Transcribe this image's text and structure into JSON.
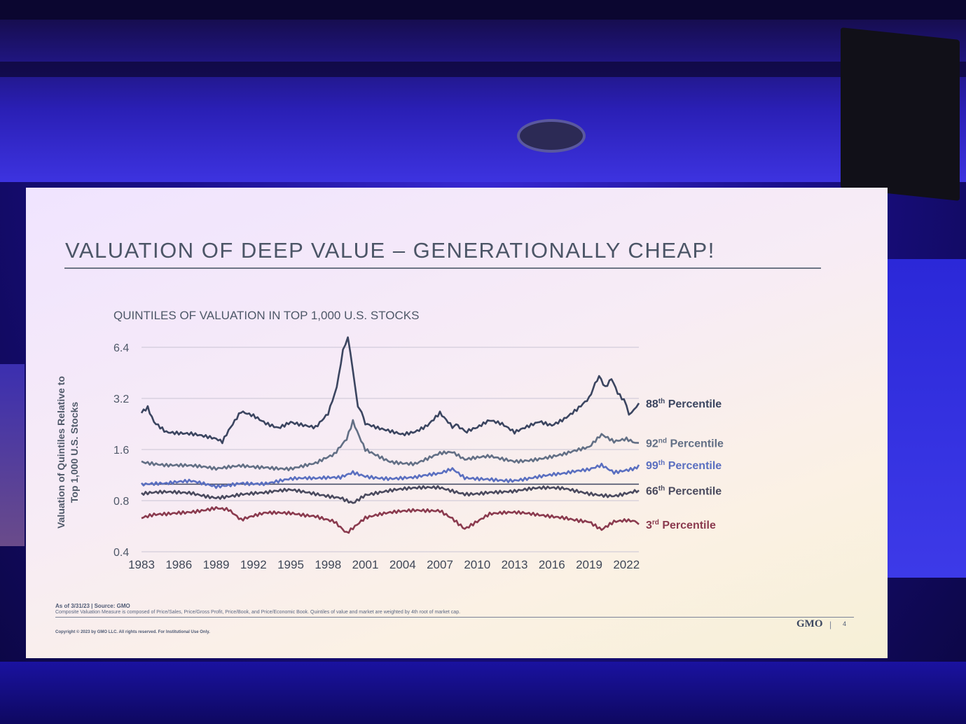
{
  "slide": {
    "title": "VALUATION OF DEEP VALUE – GENERATIONALLY CHEAP!",
    "footnote_source": "As of 3/31/23 | Source: GMO",
    "footnote_method": "Composite Valuation Measure is composed of Price/Sales, Price/Gross Profit, Price/Book, and Price/Economic Book. Quintiles of value and market are weighted by 4th root of market cap.",
    "copyright": "Copyright © 2023 by GMO LLC. All rights reserved. For Institutional Use Only.",
    "logo": "GMO",
    "page_number": "4"
  },
  "chart_data": {
    "type": "line",
    "title": "QUINTILES OF VALUATION IN TOP 1,000 U.S. STOCKS",
    "ylabel": "Valuation of Quintiles Relative to Top 1,000 U.S. Stocks",
    "xlabel": "",
    "y_scale": "log2",
    "ylim": [
      0.4,
      6.4
    ],
    "yticks": [
      "0.4",
      "0.8",
      "1.6",
      "3.2",
      "6.4"
    ],
    "xlim": [
      1983,
      2023
    ],
    "xticks": [
      "1983",
      "1986",
      "1989",
      "1992",
      "1995",
      "1998",
      "2001",
      "2004",
      "2007",
      "2010",
      "2013",
      "2016",
      "2019",
      "2022"
    ],
    "reference_line": 1.0,
    "grid": "horizontal",
    "series": [
      {
        "name": "88th Percentile",
        "name_num": "88",
        "name_sup": "th",
        "name_rest": " Percentile",
        "color": "#3b4560",
        "x": [
          1983,
          1983.5,
          1984,
          1985,
          1986,
          1987,
          1988,
          1989,
          1989.5,
          1990,
          1991,
          1992,
          1993,
          1994,
          1995,
          1996,
          1997,
          1998,
          1998.7,
          1999.2,
          1999.6,
          2000,
          2000.4,
          2001,
          2002,
          2003,
          2004,
          2005,
          2006,
          2007,
          2008,
          2008.6,
          2009,
          2010,
          2011,
          2012,
          2013,
          2014,
          2015,
          2016,
          2017,
          2018,
          2019,
          2019.8,
          2020.3,
          2020.8,
          2021.3,
          2021.8,
          2022.2,
          2022.6,
          2023
        ],
        "values": [
          2.7,
          2.9,
          2.4,
          2.1,
          2.05,
          2.0,
          1.9,
          1.8,
          1.72,
          2.0,
          2.6,
          2.5,
          2.3,
          2.2,
          2.4,
          2.3,
          2.2,
          2.6,
          3.8,
          6.2,
          7.3,
          4.5,
          3.0,
          2.2,
          2.1,
          2.05,
          2.0,
          2.1,
          2.3,
          2.7,
          2.2,
          2.1,
          2.0,
          2.1,
          2.3,
          2.2,
          2.0,
          2.2,
          2.4,
          2.3,
          2.5,
          2.8,
          3.2,
          4.2,
          3.6,
          4.1,
          3.4,
          3.1,
          2.5,
          2.9,
          3.0
        ]
      },
      {
        "name": "92nd Percentile",
        "name_num": "92",
        "name_sup": "nd",
        "name_rest": " Percentile",
        "color": "#626f85",
        "x": [
          1983,
          1985,
          1987,
          1989,
          1991,
          1993,
          1995,
          1997,
          1998.5,
          1999.5,
          2000,
          2000.5,
          2001,
          2003,
          2005,
          2007,
          2008,
          2009,
          2011,
          2013,
          2015,
          2017,
          2019,
          2020,
          2021,
          2022,
          2023
        ],
        "values": [
          1.4,
          1.3,
          1.25,
          1.2,
          1.3,
          1.3,
          1.25,
          1.3,
          1.45,
          1.8,
          2.3,
          1.9,
          1.6,
          1.4,
          1.35,
          1.5,
          1.5,
          1.35,
          1.45,
          1.4,
          1.45,
          1.5,
          1.6,
          1.9,
          1.75,
          1.85,
          1.75
        ]
      },
      {
        "name": "99th Percentile",
        "name_num": "99",
        "name_sup": "th",
        "name_rest": " Percentile",
        "color": "#5a6fc0",
        "x": [
          1983,
          1985,
          1987,
          1989,
          1991,
          1993,
          1995,
          1997,
          1999,
          2000,
          2001,
          2003,
          2005,
          2007,
          2008,
          2009,
          2011,
          2013,
          2015,
          2017,
          2019,
          2020,
          2021,
          2022,
          2023
        ],
        "values": [
          1.0,
          0.98,
          1.02,
          0.98,
          1.05,
          1.02,
          1.05,
          1.05,
          1.1,
          1.2,
          1.15,
          1.1,
          1.08,
          1.12,
          1.2,
          1.08,
          1.1,
          1.08,
          1.1,
          1.12,
          1.2,
          1.3,
          1.2,
          1.25,
          1.3
        ]
      },
      {
        "name": "66th Percentile",
        "name_num": "66",
        "name_sup": "th",
        "name_rest": " Percentile",
        "color": "#4a4a5e",
        "x": [
          1983,
          1985,
          1987,
          1989,
          1991,
          1993,
          1995,
          1997,
          1999,
          2000,
          2001,
          2003,
          2005,
          2007,
          2009,
          2011,
          2013,
          2015,
          2017,
          2019,
          2021,
          2023
        ],
        "values": [
          0.85,
          0.88,
          0.9,
          0.86,
          0.88,
          0.87,
          0.9,
          0.88,
          0.86,
          0.8,
          0.88,
          0.9,
          0.92,
          0.95,
          0.9,
          0.92,
          0.9,
          0.92,
          0.93,
          0.9,
          0.88,
          0.92
        ]
      },
      {
        "name": "3rd Percentile",
        "name_num": "3",
        "name_sup": "rd",
        "name_rest": " Percentile",
        "color": "#8a3a4e",
        "x": [
          1983,
          1984,
          1986,
          1988,
          1989,
          1990,
          1991,
          1993,
          1995,
          1997,
          1998.5,
          1999.5,
          2000,
          2001,
          2003,
          2005,
          2007,
          2008,
          2009,
          2011,
          2013,
          2015,
          2017,
          2019,
          2020,
          2021,
          2022,
          2023
        ],
        "values": [
          0.62,
          0.66,
          0.7,
          0.72,
          0.73,
          0.7,
          0.6,
          0.66,
          0.68,
          0.67,
          0.62,
          0.52,
          0.55,
          0.62,
          0.66,
          0.7,
          0.72,
          0.65,
          0.56,
          0.66,
          0.66,
          0.65,
          0.65,
          0.62,
          0.55,
          0.6,
          0.6,
          0.58
        ]
      }
    ]
  }
}
